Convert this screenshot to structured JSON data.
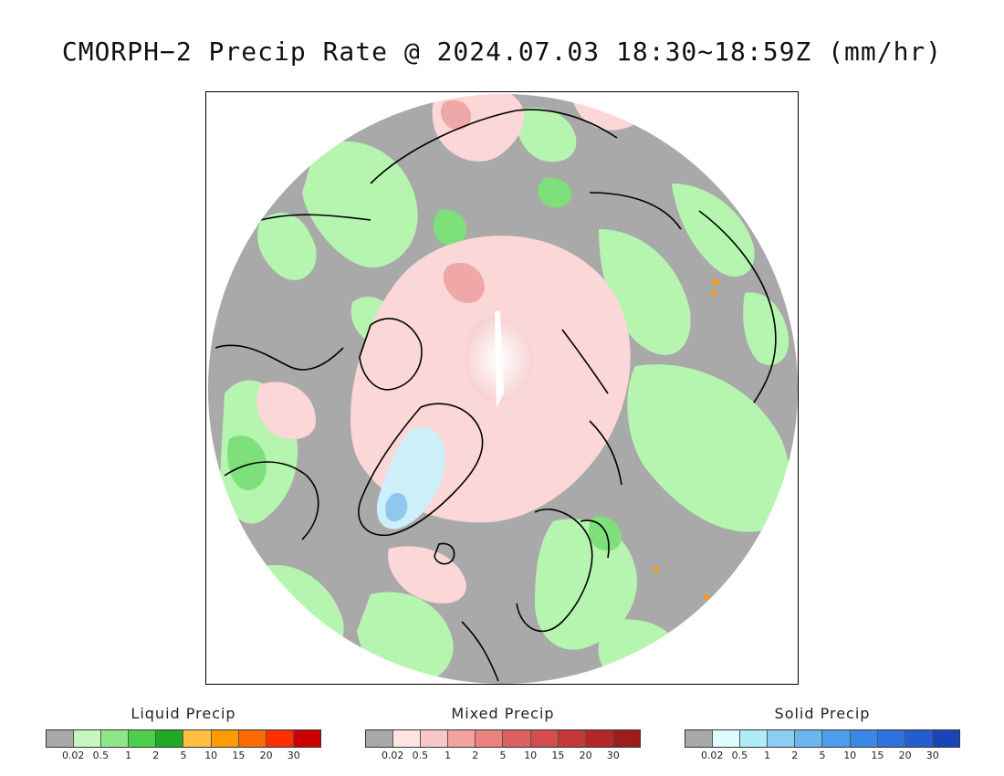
{
  "title": "CMORPH−2 Precip Rate @ 2024.07.03 18:30~18:59Z (mm/hr)",
  "map": {
    "projection": "north-polar-stereographic",
    "colors": {
      "no_precip": "#a9a9a9",
      "liquid_light": "#b6f5b0",
      "liquid_mid": "#7ee07a",
      "liquid_strong": "#3ec13a",
      "mixed_light": "#fbd7d7",
      "mixed_mid": "#efa7a7",
      "solid_light": "#cdeffa",
      "solid_mid": "#8fc7ee",
      "coastline": "#000000"
    }
  },
  "legends": [
    {
      "title": "Liquid Precip",
      "colors": [
        "#a9a9a9",
        "#c8f5c0",
        "#8ee787",
        "#4ccf4c",
        "#20a825",
        "#ffbf40",
        "#ff9a00",
        "#ff6a00",
        "#ff3000",
        "#cc0000"
      ],
      "ticks": [
        "0.02",
        "0.5",
        "1",
        "2",
        "5",
        "10",
        "15",
        "20",
        "30"
      ]
    },
    {
      "title": "Mixed Precip",
      "colors": [
        "#a9a9a9",
        "#ffe4e4",
        "#fbc6c6",
        "#f3a2a2",
        "#ea8080",
        "#df6060",
        "#d44c4c",
        "#c43838",
        "#b22828",
        "#9e1c1c"
      ],
      "ticks": [
        "0.02",
        "0.5",
        "1",
        "2",
        "5",
        "10",
        "15",
        "20",
        "30"
      ]
    },
    {
      "title": "Solid Precip",
      "colors": [
        "#a9a9a9",
        "#e0fcfc",
        "#b0ecf6",
        "#8ccdf4",
        "#6cb6f0",
        "#4c9eec",
        "#3a88e6",
        "#2d72de",
        "#225ed2",
        "#1846b8"
      ],
      "ticks": [
        "0.02",
        "0.5",
        "1",
        "2",
        "5",
        "10",
        "15",
        "20",
        "30"
      ]
    }
  ]
}
